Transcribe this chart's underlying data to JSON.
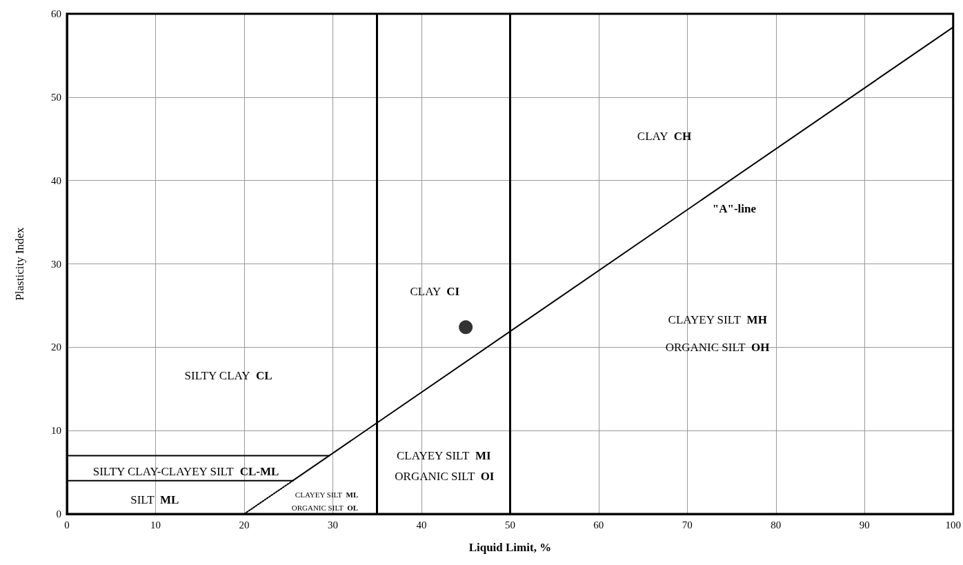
{
  "chart_data": {
    "type": "line",
    "xlabel": "Liquid Limit, %",
    "ylabel": "Plasticity Index",
    "xlim": [
      0,
      100
    ],
    "ylim": [
      0,
      60
    ],
    "xticks": [
      0,
      10,
      20,
      30,
      40,
      50,
      60,
      70,
      80,
      90,
      100
    ],
    "yticks": [
      0,
      10,
      20,
      30,
      40,
      50,
      60
    ],
    "grid": true,
    "series": [
      {
        "type": "line",
        "color": "#000000",
        "x": [
          25.5,
          100
        ],
        "values": [
          4,
          58.4
        ],
        "line_style": "solid",
        "marker": "none"
      },
      {
        "type": "line",
        "color": "#000000",
        "x": [
          20,
          25.5
        ],
        "values": [
          0,
          4
        ],
        "line_style": "dotted",
        "marker": "none"
      },
      {
        "type": "line",
        "color": "#000000",
        "x": [
          0,
          29.6
        ],
        "values": [
          7,
          7
        ],
        "line_style": "solid",
        "marker": "none"
      },
      {
        "type": "line",
        "color": "#000000",
        "x": [
          0,
          25.5
        ],
        "values": [
          4,
          4
        ],
        "line_style": "solid",
        "marker": "none"
      },
      {
        "type": "scatter",
        "color": "#000000",
        "x": [
          45
        ],
        "values": [
          22.4
        ],
        "marker": "circle"
      }
    ],
    "ref_lines": [
      {
        "axis": "x",
        "value": 35,
        "color": "#000000"
      },
      {
        "axis": "x",
        "value": 50,
        "color": "#000000"
      }
    ],
    "annotations": [
      "CLAY CH",
      "\"A\"-line",
      "CLAY CI",
      "CLAYEY SILT MH",
      "ORGANIC SILT OH",
      "SILTY CLAY CL",
      "CLAYEY SILT MI",
      "ORGANIC SILT OI",
      "SILTY CLAY-CLAYEY SILT CL-ML",
      "SILT ML",
      "CLAYEY SILT ML",
      "ORGANIC SILT OL"
    ]
  }
}
